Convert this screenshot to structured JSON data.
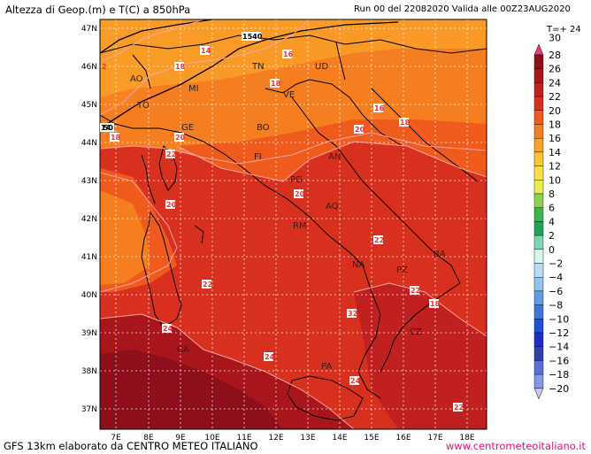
{
  "header": {
    "title": "Altezza di Geop.(m) e T(C) a 850hPa",
    "run": "Run 00 del 22082020  Valida alle 00Z23AUG2020",
    "forecast_step": "T=+ 24"
  },
  "footer": {
    "left": "GFS 13km elaborato da CENTRO METEO ITALIANO",
    "right": "www.centrometeoitaliano.it"
  },
  "axes": {
    "lat_ticks": [
      "47N",
      "46N",
      "45N",
      "44N",
      "43N",
      "42N",
      "41N",
      "40N",
      "39N",
      "38N",
      "37N"
    ],
    "lon_ticks": [
      "7E",
      "8E",
      "9E",
      "10E",
      "11E",
      "12E",
      "13E",
      "14E",
      "15E",
      "16E",
      "17E",
      "18E"
    ]
  },
  "legend": {
    "items": [
      {
        "label": "30",
        "color": "#e0407a"
      },
      {
        "label": "28",
        "color": "#8c0f1b"
      },
      {
        "label": "26",
        "color": "#a8161b"
      },
      {
        "label": "24",
        "color": "#c0201f"
      },
      {
        "label": "22",
        "color": "#d7301f"
      },
      {
        "label": "20",
        "color": "#ef5a1d"
      },
      {
        "label": "18",
        "color": "#f57e20"
      },
      {
        "label": "16",
        "color": "#f9a32a"
      },
      {
        "label": "14",
        "color": "#fbc52f"
      },
      {
        "label": "12",
        "color": "#fde144"
      },
      {
        "label": "10",
        "color": "#e8ef50"
      },
      {
        "label": "8",
        "color": "#8fd14f"
      },
      {
        "label": "6",
        "color": "#3ab54a"
      },
      {
        "label": "4",
        "color": "#1fa45a"
      },
      {
        "label": "2",
        "color": "#7fd8b2"
      },
      {
        "label": "0",
        "color": "#d8f5ee"
      },
      {
        "label": "−2",
        "color": "#b9dcf5"
      },
      {
        "label": "−4",
        "color": "#93c3ef"
      },
      {
        "label": "−6",
        "color": "#5e9de4"
      },
      {
        "label": "−8",
        "color": "#3a78d9"
      },
      {
        "label": "−10",
        "color": "#1e4fd6"
      },
      {
        "label": "−12",
        "color": "#1a2fc7"
      },
      {
        "label": "−14",
        "color": "#3040a8"
      },
      {
        "label": "−16",
        "color": "#5a6fd4"
      },
      {
        "label": "−18",
        "color": "#8a96e5"
      },
      {
        "label": "−20",
        "color": "#c4c8f2"
      }
    ]
  },
  "cities": [
    {
      "name": "AO"
    },
    {
      "name": "TO"
    },
    {
      "name": "MI"
    },
    {
      "name": "TN"
    },
    {
      "name": "UD"
    },
    {
      "name": "VE"
    },
    {
      "name": "BO"
    },
    {
      "name": "FI"
    },
    {
      "name": "AN"
    },
    {
      "name": "PG"
    },
    {
      "name": "AQ"
    },
    {
      "name": "RM"
    },
    {
      "name": "NA"
    },
    {
      "name": "BA"
    },
    {
      "name": "PZ"
    },
    {
      "name": "CZ"
    },
    {
      "name": "PA"
    },
    {
      "name": "CA"
    },
    {
      "name": "GE"
    }
  ],
  "contour_labels": {
    "temp": [
      "18",
      "14",
      "16",
      "18",
      "18",
      "16",
      "18",
      "20",
      "20",
      "22",
      "20",
      "20",
      "22",
      "22",
      "22",
      "32",
      "24",
      "24",
      "24",
      "22",
      "18"
    ],
    "geop": [
      "1540",
      "1540",
      "2"
    ]
  }
}
